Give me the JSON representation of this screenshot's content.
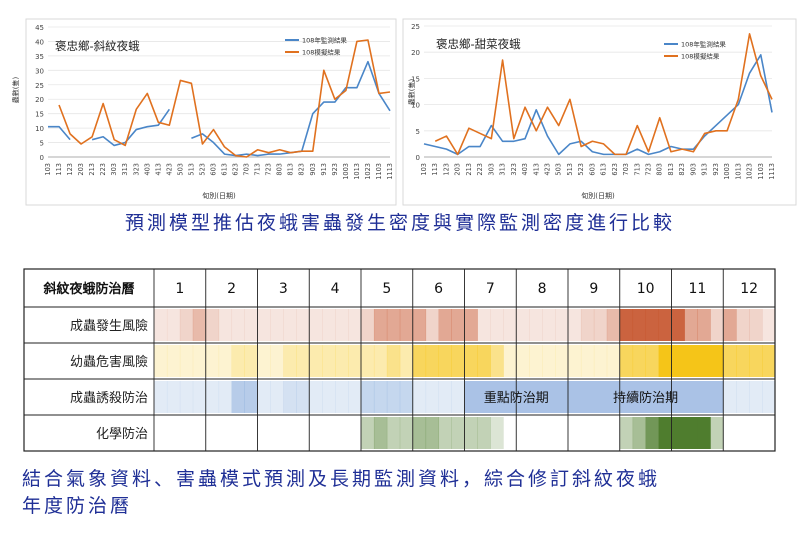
{
  "heading_top": "預測模型推估夜蛾害蟲發生密度與實際監測密度進行比較",
  "heading_bottom_line1": "結合氣象資料、害蟲模式預測及長期監測資料，綜合修訂斜紋夜蛾",
  "heading_bottom_line2": "年度防治曆",
  "chart_data": [
    {
      "type": "line",
      "title": "褒忠鄉-斜紋夜蛾",
      "xlabel": "旬別(日期)",
      "ylabel": "蟲數(隻)",
      "ylim": [
        0,
        45
      ],
      "yticks": [
        0,
        5,
        10,
        15,
        20,
        25,
        30,
        35,
        40,
        45
      ],
      "x": [
        "103",
        "113",
        "123",
        "203",
        "213",
        "223",
        "303",
        "313",
        "323",
        "403",
        "413",
        "423",
        "503",
        "513",
        "523",
        "603",
        "613",
        "623",
        "703",
        "713",
        "723",
        "803",
        "813",
        "823",
        "903",
        "913",
        "923",
        "1003",
        "1013",
        "1023",
        "1103",
        "1113"
      ],
      "legend_position": "top-right",
      "series": [
        {
          "name": "108年監測結果",
          "color": "#4a86c8",
          "values": [
            10.5,
            10.5,
            6,
            null,
            6,
            7,
            4,
            5,
            9.5,
            10.5,
            11,
            16.5,
            null,
            6.5,
            8,
            5,
            1,
            0.5,
            1,
            0.5,
            1,
            1,
            1.5,
            2,
            15,
            19,
            19,
            24,
            24,
            33,
            22,
            16
          ]
        },
        {
          "name": "108模擬結果",
          "color": "#e0711f",
          "values": [
            null,
            18,
            8,
            4.5,
            7,
            18.5,
            6,
            4,
            16.5,
            22,
            12,
            11,
            26.5,
            25.5,
            4.5,
            9.5,
            3.5,
            0.5,
            0,
            2.5,
            1.5,
            2.5,
            1.5,
            2,
            2,
            30,
            20,
            23,
            40,
            40.5,
            22,
            22.5
          ]
        }
      ]
    },
    {
      "type": "line",
      "title": "褒忠鄉-甜菜夜蛾",
      "xlabel": "旬別(日期)",
      "ylabel": "蟲數(隻)",
      "ylim": [
        0,
        25
      ],
      "yticks": [
        0,
        5,
        10,
        15,
        20,
        25
      ],
      "x": [
        "103",
        "113",
        "123",
        "203",
        "213",
        "223",
        "303",
        "313",
        "323",
        "403",
        "413",
        "423",
        "503",
        "513",
        "523",
        "603",
        "613",
        "623",
        "703",
        "713",
        "723",
        "803",
        "813",
        "823",
        "903",
        "913",
        "923",
        "1003",
        "1013",
        "1023",
        "1103",
        "1113"
      ],
      "legend_position": "top-right",
      "series": [
        {
          "name": "108年監測結果",
          "color": "#4a86c8",
          "values": [
            2.5,
            2,
            1.5,
            0.5,
            2,
            2,
            6,
            3,
            3,
            3.5,
            9,
            4,
            0.5,
            2.5,
            3,
            1,
            0.5,
            0.5,
            0.5,
            1.5,
            0.5,
            1,
            2,
            1.5,
            1.5,
            4,
            6,
            8,
            10,
            16,
            19.5,
            8.5
          ]
        },
        {
          "name": "108模擬結果",
          "color": "#e0711f",
          "values": [
            null,
            3,
            4,
            0.5,
            5.5,
            4.5,
            3.5,
            18.5,
            3.5,
            9.5,
            5,
            9.5,
            6,
            11,
            2,
            3,
            2.5,
            0.5,
            0.5,
            6,
            1,
            7.5,
            1,
            1.5,
            1,
            4.5,
            5,
            5,
            11,
            23.5,
            15.5,
            11
          ]
        }
      ]
    },
    {
      "type": "table",
      "title": "斜紋夜蛾防治曆",
      "columns": [
        "1",
        "2",
        "3",
        "4",
        "5",
        "6",
        "7",
        "8",
        "9",
        "10",
        "11",
        "12"
      ],
      "rows": [
        {
          "label": "成蟲發生風險",
          "color": "#c5522a",
          "levels": [
            0.15,
            0.15,
            0.25,
            0.4,
            0.25,
            0.15,
            0.15,
            0.15,
            0.15,
            0.15,
            0.15,
            0.15,
            0.15,
            0.15,
            0.15,
            0.15,
            0.25,
            0.5,
            0.5,
            0.5,
            0.5,
            0.25,
            0.5,
            0.5,
            0.5,
            0.15,
            0.15,
            0.15,
            0.15,
            0.15,
            0.15,
            0.15,
            0.15,
            0.25,
            0.25,
            0.4,
            0.9,
            0.9,
            0.9,
            0.9,
            0.9,
            0.5,
            0.5,
            0.25,
            0.5,
            0.25,
            0.25,
            0.15
          ]
        },
        {
          "label": "幼蟲危害風險",
          "color": "#f5c518",
          "levels": [
            0.2,
            0.2,
            0.2,
            0.2,
            0.2,
            0.2,
            0.35,
            0.35,
            0.2,
            0.2,
            0.35,
            0.35,
            0.35,
            0.35,
            0.35,
            0.35,
            0.35,
            0.35,
            0.5,
            0.35,
            0.7,
            0.7,
            0.7,
            0.7,
            0.7,
            0.7,
            0.5,
            0.2,
            0.2,
            0.2,
            0.2,
            0.2,
            0.2,
            0.2,
            0.2,
            0.2,
            0.7,
            0.7,
            0.7,
            1,
            1,
            1,
            1,
            1,
            0.7,
            0.7,
            0.7,
            0.7
          ]
        },
        {
          "label": "成蟲誘殺防治",
          "color": "#6f9ad4",
          "levels": [
            0.2,
            0.2,
            0.2,
            0.2,
            0.2,
            0.2,
            0.5,
            0.5,
            0.2,
            0.2,
            0.3,
            0.3,
            0.2,
            0.2,
            0.2,
            0.2,
            0.4,
            0.4,
            0.4,
            0.4,
            0.2,
            0.2,
            0.2,
            0.2,
            0.4,
            0.4,
            0.4,
            0.4,
            0.4,
            0.4,
            0.4,
            0.4,
            0.4,
            0.4,
            0.4,
            0.4,
            0.4,
            0.4,
            0.4,
            0.4,
            0.4,
            0.4,
            0.4,
            0.4,
            0.2,
            0.2,
            0.2,
            0.2
          ]
        },
        {
          "label": "化學防治",
          "color": "#4f7d2e",
          "levels": [
            0,
            0,
            0,
            0,
            0,
            0,
            0,
            0,
            0,
            0,
            0,
            0,
            0,
            0,
            0,
            0,
            0.35,
            0.5,
            0.35,
            0.35,
            0.5,
            0.5,
            0.35,
            0.35,
            0.35,
            0.35,
            0.2,
            0,
            0,
            0,
            0,
            0,
            0,
            0,
            0,
            0,
            0.35,
            0.5,
            0.8,
            1,
            1,
            1,
            1,
            0.35,
            0,
            0,
            0,
            0
          ]
        }
      ],
      "annotations": [
        {
          "text": "重點防治期",
          "row": 2,
          "start_month": 7,
          "end_month": 8
        },
        {
          "text": "持續防治期",
          "row": 2,
          "start_month": 9,
          "end_month": 11
        }
      ]
    }
  ]
}
